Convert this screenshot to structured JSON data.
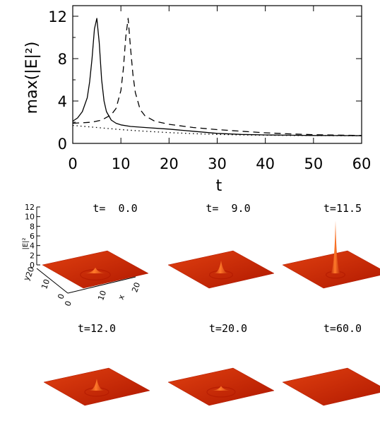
{
  "chart_data": [
    {
      "type": "line",
      "xlabel": "t",
      "ylabel": "max(|E|²)",
      "xlim": [
        0,
        60
      ],
      "ylim": [
        0,
        13
      ],
      "x_ticks": [
        "0",
        "10",
        "20",
        "30",
        "40",
        "50",
        "60"
      ],
      "y_ticks": [
        "0",
        "4",
        "8",
        "12"
      ],
      "series": [
        {
          "style": "solid",
          "x": [
            0,
            1,
            2,
            3,
            3.5,
            4,
            4.5,
            5,
            5.5,
            6,
            6.5,
            7,
            8,
            9,
            10,
            12,
            15,
            20,
            25,
            30,
            35,
            40,
            45,
            50,
            55,
            60
          ],
          "y": [
            2.1,
            2.4,
            3.0,
            4.3,
            5.8,
            8.0,
            10.8,
            11.8,
            9.5,
            6.0,
            4.0,
            3.0,
            2.2,
            1.9,
            1.75,
            1.6,
            1.5,
            1.35,
            1.15,
            0.95,
            0.85,
            0.8,
            0.77,
            0.75,
            0.74,
            0.73
          ]
        },
        {
          "style": "dashed",
          "x": [
            0,
            2,
            4,
            6,
            8,
            9,
            10,
            10.5,
            11,
            11.5,
            12,
            12.5,
            13,
            14,
            15,
            17,
            20,
            25,
            30,
            35,
            40,
            45,
            50,
            55,
            60
          ],
          "y": [
            1.9,
            1.95,
            2.0,
            2.2,
            2.7,
            3.3,
            5.0,
            7.0,
            10.0,
            11.8,
            9.0,
            6.5,
            4.8,
            3.2,
            2.6,
            2.1,
            1.8,
            1.5,
            1.3,
            1.15,
            1.0,
            0.9,
            0.82,
            0.78,
            0.75
          ]
        },
        {
          "style": "dotted",
          "x": [
            0,
            5,
            10,
            15,
            20,
            25,
            30,
            35,
            40,
            45,
            50,
            55,
            60
          ],
          "y": [
            1.7,
            1.5,
            1.3,
            1.15,
            1.02,
            0.92,
            0.85,
            0.8,
            0.77,
            0.75,
            0.74,
            0.73,
            0.73
          ]
        }
      ]
    },
    {
      "type": "surface",
      "zlabel": "|E|²",
      "z_ticks": [
        "0",
        "2",
        "4",
        "6",
        "8",
        "10",
        "12"
      ],
      "x_axis_label": "x",
      "y_axis_label": "y",
      "x_ticks": [
        "0",
        "10",
        "20"
      ],
      "y_ticks": [
        "0",
        "10",
        "20"
      ],
      "zlim": [
        0,
        12
      ],
      "panels": [
        {
          "label": "t=  0.0",
          "t": 0.0,
          "peak": 1.2,
          "width": 2.2,
          "ring": 0.25
        },
        {
          "label": "t=  9.0",
          "t": 9.0,
          "peak": 2.8,
          "width": 1.4,
          "ring": 0.2
        },
        {
          "label": "t=11.5",
          "t": 11.5,
          "peak": 11.5,
          "width": 0.9,
          "ring": 0.2
        },
        {
          "label": "t=12.0",
          "t": 12.0,
          "peak": 2.6,
          "width": 1.5,
          "ring": 0.35
        },
        {
          "label": "t=20.0",
          "t": 20.0,
          "peak": 1.0,
          "width": 2.0,
          "ring": 0.2
        },
        {
          "label": "t=60.0",
          "t": 60.0,
          "peak": 0.0,
          "width": 2.0,
          "ring": 0.0
        }
      ]
    }
  ],
  "colors": {
    "surface_light": "#ff7a2a",
    "surface_mid": "#e04010",
    "surface_dark": "#b01800",
    "line": "#000000"
  }
}
